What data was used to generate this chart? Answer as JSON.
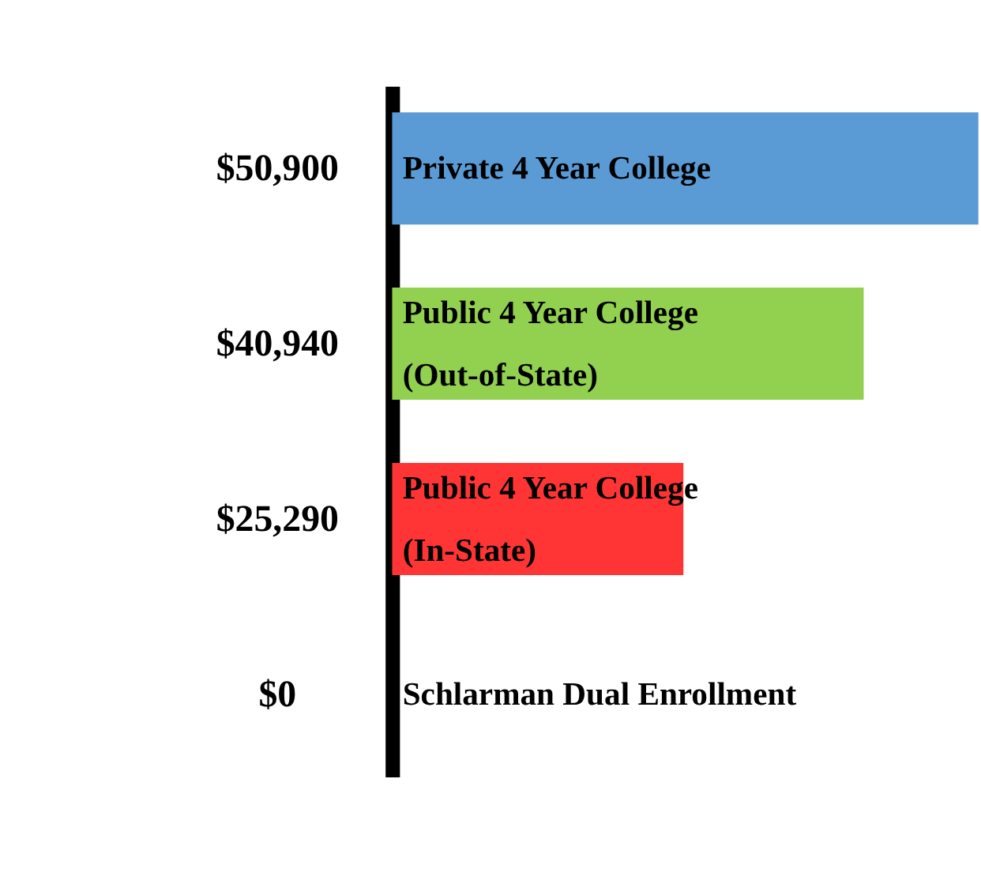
{
  "chart_data": {
    "type": "bar",
    "orientation": "horizontal",
    "categories": [
      "Private 4 Year College",
      "Public 4 Year College\n (Out-of-State)",
      "Public 4 Year College\n(In-State)",
      "Schlarman Dual Enrollment"
    ],
    "values": [
      50900,
      40940,
      25290,
      0
    ],
    "colors": [
      "#5b9bd5",
      "#92d050",
      "#ff3535",
      "#ffff00"
    ],
    "value_labels": [
      "$50,900",
      "$40,940",
      "$25,290",
      "$0"
    ],
    "xlim": [
      0,
      50900
    ],
    "tick_labels": false,
    "grid": false,
    "legend": false
  }
}
